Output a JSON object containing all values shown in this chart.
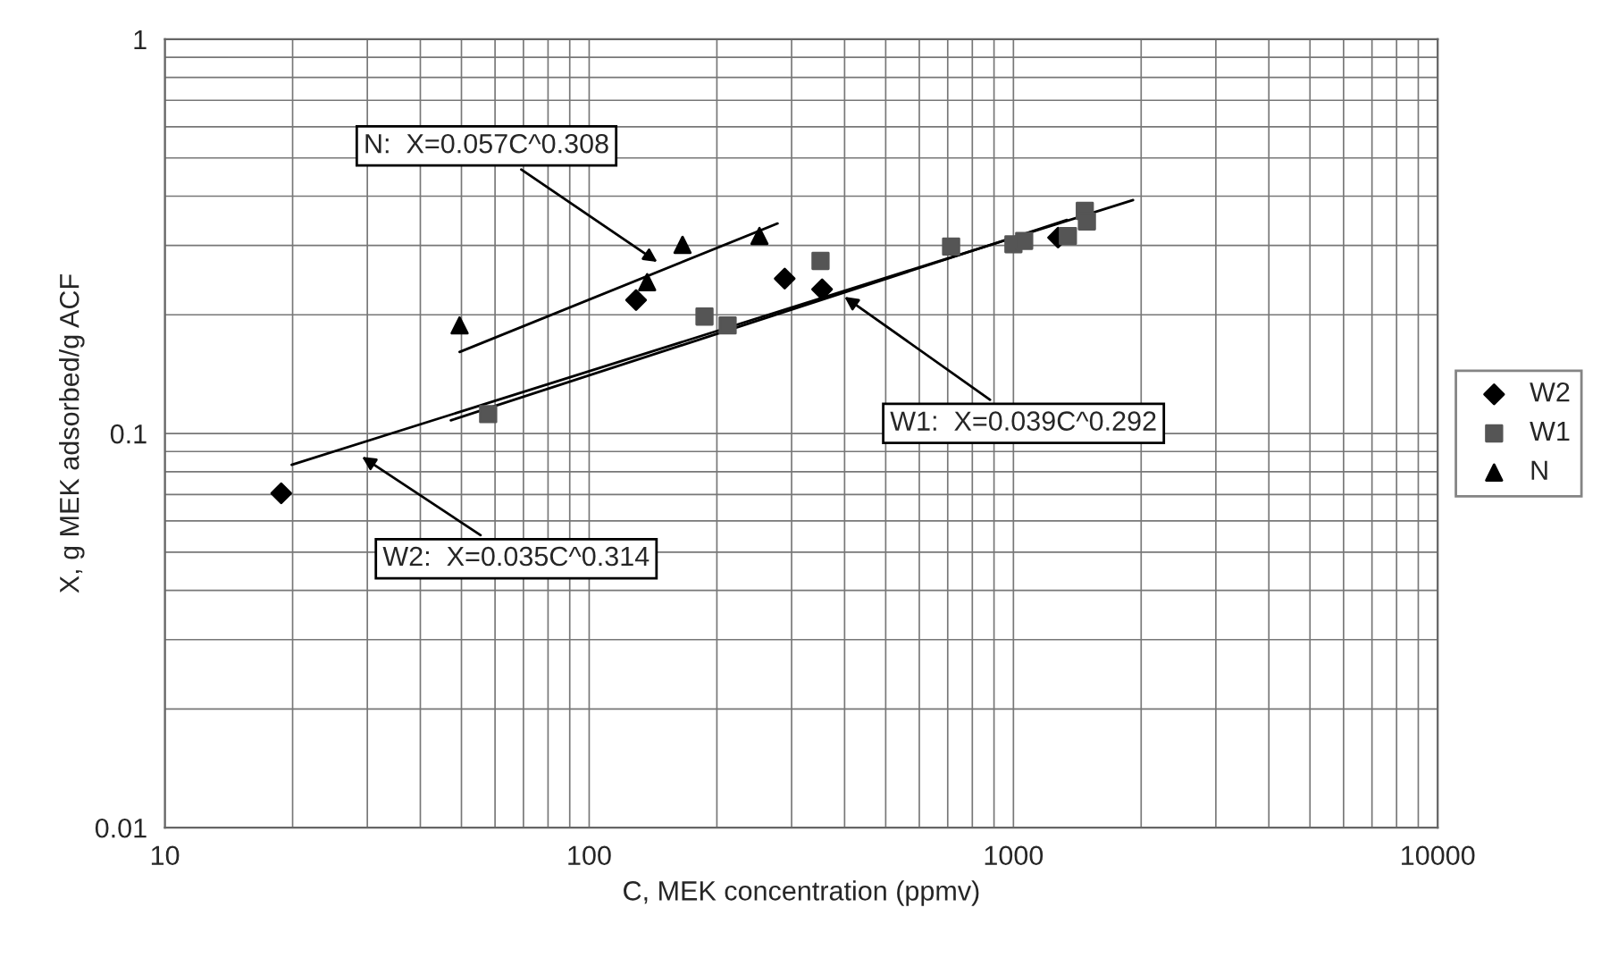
{
  "chart_data": {
    "type": "scatter",
    "xlabel": "C, MEK concentration (ppmv)",
    "ylabel": "X, g MEK adsorbed/g ACF",
    "log": "xy",
    "xlim": [
      10,
      10000
    ],
    "ylim": [
      0.01,
      1
    ],
    "xticks": [
      10,
      100,
      1000,
      10000
    ],
    "yticks": [
      0.01,
      0.1,
      1
    ],
    "grid": true,
    "legend": "right",
    "series": [
      {
        "name": "W2",
        "color": "#000000",
        "marker": "diamond",
        "x": [
          18.8,
          129,
          289,
          354,
          1274
        ],
        "values": [
          0.0705,
          0.218,
          0.247,
          0.232,
          0.314
        ]
      },
      {
        "name": "W1",
        "color": "#555555",
        "marker": "square",
        "x": [
          57.8,
          187,
          212,
          351,
          713,
          1000,
          1060,
          1344,
          1473,
          1490
        ],
        "values": [
          0.112,
          0.198,
          0.188,
          0.274,
          0.298,
          0.302,
          0.308,
          0.317,
          0.367,
          0.345
        ]
      },
      {
        "name": "N",
        "color": "#000000",
        "marker": "triangle",
        "x": [
          49.5,
          137,
          166,
          252
        ],
        "values": [
          0.188,
          0.242,
          0.301,
          0.317
        ]
      },
      {
        "type": "line",
        "color": "#000000",
        "marker": "none",
        "x": [
          49.5,
          278
        ],
        "values": [
          0.161,
          0.341
        ]
      },
      {
        "type": "line",
        "color": "#000000",
        "marker": "none",
        "x": [
          19.9,
          1914
        ],
        "values": [
          0.0833,
          0.391
        ]
      },
      {
        "type": "line",
        "color": "#000000",
        "marker": "none",
        "x": [
          47.2,
          1337
        ],
        "values": [
          0.108,
          0.348
        ]
      }
    ],
    "annotations": [
      {
        "text": "N:  X=0.057C^0.308",
        "x": 148,
        "y": 0.268
      },
      {
        "text": "W2:  X=0.035C^0.314",
        "x": 28.5,
        "y": 0.0887
      },
      {
        "text": "W1:  X=0.039C^0.292",
        "x": 391,
        "y": 0.226
      }
    ]
  }
}
